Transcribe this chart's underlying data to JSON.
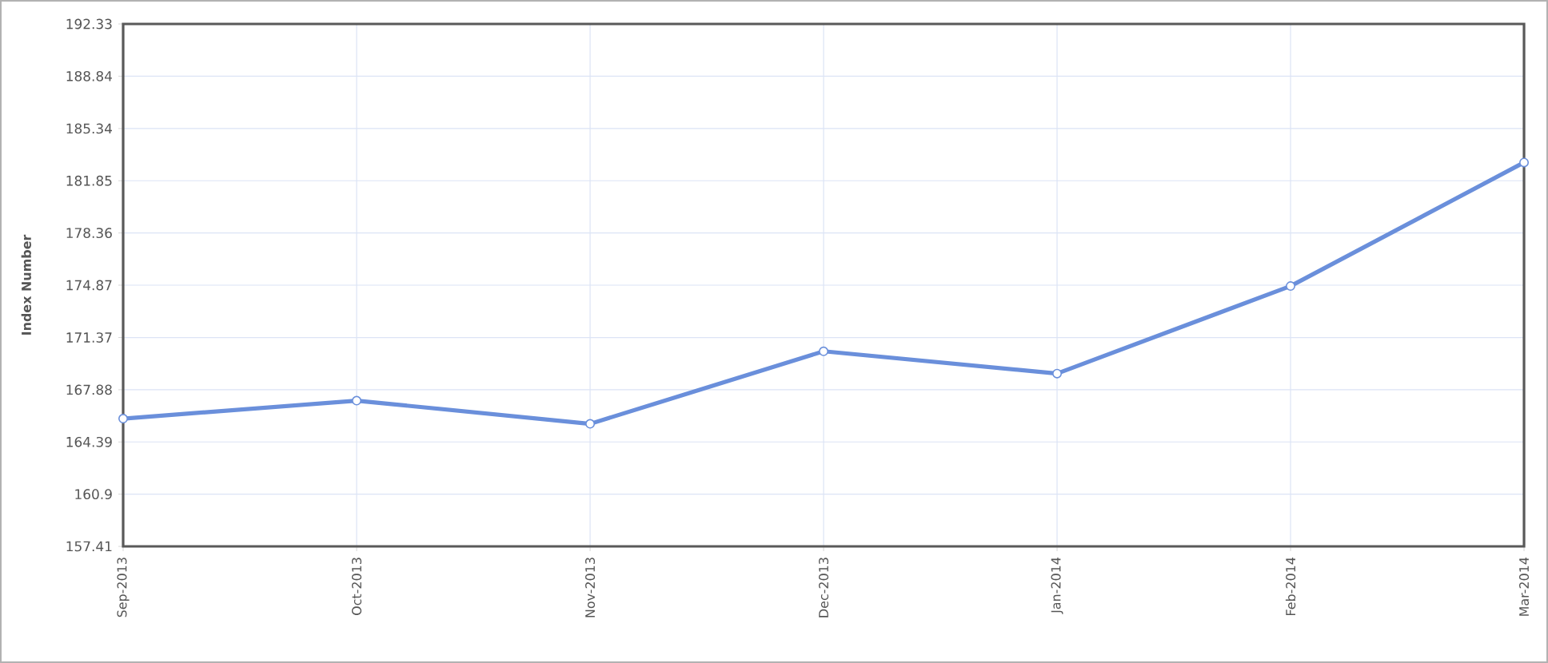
{
  "chart_data": {
    "type": "line",
    "ylabel": "Index Number",
    "categories": [
      "Sep-2013",
      "Oct-2013",
      "Nov-2013",
      "Dec-2013",
      "Jan-2014",
      "Feb-2014",
      "Mar-2014"
    ],
    "series": [
      {
        "color": "#6a8fdb",
        "values": [
          165.95,
          167.15,
          165.6,
          170.45,
          168.96,
          174.81,
          183.07
        ]
      }
    ],
    "ylim": [
      157.41,
      192.33
    ],
    "yticks": [
      157.41,
      160.9,
      164.39,
      167.88,
      171.37,
      174.87,
      178.36,
      181.85,
      185.34,
      188.84,
      192.33
    ],
    "grid": true,
    "marker": "circle",
    "line_style": "solid"
  }
}
